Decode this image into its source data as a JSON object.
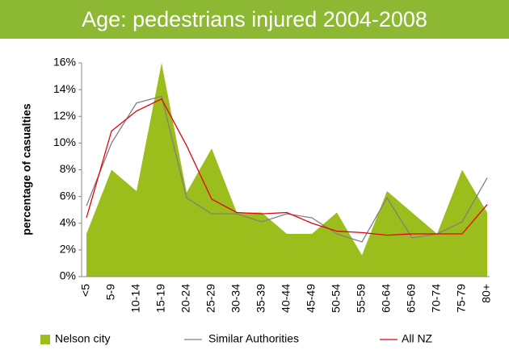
{
  "chart_data": {
    "type": "area_line",
    "title": "Age: pedestrians injured 2004-2008",
    "y_label": "percentage of casualties",
    "categories": [
      "<5",
      "5-9",
      "10-14",
      "15-19",
      "20-24",
      "25-29",
      "30-34",
      "35-39",
      "40-44",
      "45-49",
      "50-54",
      "55-59",
      "60-64",
      "65-69",
      "70-74",
      "75-79",
      "80+"
    ],
    "series": [
      {
        "name": "Nelson city",
        "kind": "area",
        "color": "#9cbe1c",
        "values": [
          3.2,
          8.0,
          6.4,
          16.0,
          6.3,
          9.6,
          4.8,
          4.8,
          3.2,
          3.2,
          4.8,
          1.6,
          6.4,
          4.8,
          3.2,
          8.0,
          4.8
        ]
      },
      {
        "name": "Similar Authorities",
        "kind": "line",
        "color": "#808080",
        "values": [
          5.3,
          10.0,
          13.0,
          13.5,
          5.9,
          4.7,
          4.7,
          4.1,
          4.7,
          4.4,
          3.2,
          2.6,
          5.9,
          2.9,
          3.2,
          4.1,
          7.4
        ]
      },
      {
        "name": "All NZ",
        "kind": "line",
        "color": "#e8000b",
        "values": [
          4.4,
          10.9,
          12.4,
          13.3,
          9.8,
          5.8,
          4.8,
          4.7,
          4.8,
          4.0,
          3.4,
          3.3,
          3.1,
          3.2,
          3.2,
          3.2,
          5.4
        ]
      }
    ],
    "ylim": [
      0,
      16
    ],
    "yticks": [
      {
        "value": 0,
        "label": "0%"
      },
      {
        "value": 2,
        "label": "2%"
      },
      {
        "value": 4,
        "label": "4%"
      },
      {
        "value": 6,
        "label": "6%"
      },
      {
        "value": 8,
        "label": "8%"
      },
      {
        "value": 10,
        "label": "10%"
      },
      {
        "value": 12,
        "label": "12%"
      },
      {
        "value": 14,
        "label": "14%"
      },
      {
        "value": 16,
        "label": "16%"
      }
    ],
    "legend": "bottom"
  }
}
